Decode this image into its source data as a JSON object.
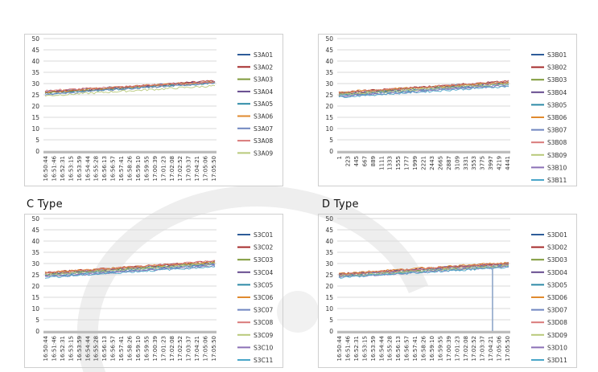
{
  "colors": {
    "palette": [
      "#2e5c99",
      "#a52a2a",
      "#7f9a3a",
      "#654a8e",
      "#2d8aa6",
      "#e08a2e",
      "#6f86c0",
      "#d97a7a",
      "#b8c97a",
      "#8b70b6",
      "#4aa6c9"
    ],
    "grid": "#d9d9d9",
    "axis": "#9e9e9e",
    "panel_border": "#cfcfcf"
  },
  "chart_data": [
    {
      "id": "a",
      "type": "line",
      "title": "",
      "xlabel": "",
      "ylabel": "",
      "ylim": [
        0,
        50
      ],
      "yticks": [
        "50",
        "45",
        "40",
        "35",
        "30",
        "25",
        "20",
        "15",
        "10",
        "5",
        "0"
      ],
      "x_tick_labels": [
        "16:50:44",
        "16:51:46",
        "16:52:31",
        "16:53:15",
        "16:53:59",
        "16:54:44",
        "16:55:28",
        "16:56:13",
        "16:56:57",
        "16:57:41",
        "16:58:26",
        "16:59:10",
        "16:59:55",
        "17:00:39",
        "17:01:23",
        "17:02:08",
        "17:02:52",
        "17:03:37",
        "17:04:21",
        "17:05:06",
        "17:05:50"
      ],
      "grid": true,
      "legend_position": "right",
      "series": [
        {
          "name": "S3A01",
          "start": 26.2,
          "end": 30.8
        },
        {
          "name": "S3A02",
          "start": 26.0,
          "end": 31.2
        },
        {
          "name": "S3A03",
          "start": 25.8,
          "end": 30.5
        },
        {
          "name": "S3A04",
          "start": 26.5,
          "end": 30.9
        },
        {
          "name": "S3A05",
          "start": 25.5,
          "end": 30.2
        },
        {
          "name": "S3A06",
          "start": 26.3,
          "end": 31.0
        },
        {
          "name": "S3A07",
          "start": 25.2,
          "end": 30.4
        },
        {
          "name": "S3A08",
          "start": 26.8,
          "end": 30.7
        },
        {
          "name": "S3A09",
          "start": 24.6,
          "end": 29.0
        }
      ]
    },
    {
      "id": "b",
      "type": "line",
      "title": "",
      "xlabel": "",
      "ylabel": "",
      "ylim": [
        0,
        50
      ],
      "yticks": [
        "50",
        "45",
        "40",
        "35",
        "30",
        "25",
        "20",
        "15",
        "10",
        "5",
        "0"
      ],
      "x_tick_labels": [
        "1",
        "223",
        "445",
        "667",
        "889",
        "1111",
        "1333",
        "1555",
        "1777",
        "1999",
        "2221",
        "2443",
        "2665",
        "2887",
        "3109",
        "3331",
        "3553",
        "3775",
        "3997",
        "4219",
        "4441"
      ],
      "grid": true,
      "legend_position": "right",
      "series": [
        {
          "name": "S3B01",
          "start": 25.8,
          "end": 30.8
        },
        {
          "name": "S3B02",
          "start": 26.0,
          "end": 31.0
        },
        {
          "name": "S3B03",
          "start": 25.5,
          "end": 30.5
        },
        {
          "name": "S3B04",
          "start": 25.2,
          "end": 30.2
        },
        {
          "name": "S3B05",
          "start": 24.8,
          "end": 29.8
        },
        {
          "name": "S3B06",
          "start": 26.2,
          "end": 30.6
        },
        {
          "name": "S3B07",
          "start": 24.5,
          "end": 29.5
        },
        {
          "name": "S3B08",
          "start": 25.9,
          "end": 30.9
        },
        {
          "name": "S3B09",
          "start": 25.0,
          "end": 30.0
        },
        {
          "name": "S3B10",
          "start": 24.2,
          "end": 29.2
        },
        {
          "name": "S3B11",
          "start": 24.0,
          "end": 28.8
        }
      ]
    },
    {
      "id": "c",
      "type": "line",
      "title": "C Type",
      "xlabel": "",
      "ylabel": "",
      "ylim": [
        0,
        50
      ],
      "yticks": [
        "50",
        "45",
        "40",
        "35",
        "30",
        "25",
        "20",
        "15",
        "10",
        "5",
        "0"
      ],
      "x_tick_labels": [
        "16:50:44",
        "16:51:46",
        "16:52:31",
        "16:53:15",
        "16:53:59",
        "16:54:44",
        "16:55:28",
        "16:56:13",
        "16:56:57",
        "16:57:41",
        "16:58:26",
        "16:59:10",
        "16:59:55",
        "17:00:39",
        "17:01:23",
        "17:02:08",
        "17:02:52",
        "17:03:37",
        "17:04:21",
        "17:05:06",
        "17:05:50"
      ],
      "grid": true,
      "legend_position": "right",
      "series": [
        {
          "name": "S3C01",
          "start": 25.6,
          "end": 30.6
        },
        {
          "name": "S3C02",
          "start": 25.9,
          "end": 31.0
        },
        {
          "name": "S3C03",
          "start": 25.3,
          "end": 30.4
        },
        {
          "name": "S3C04",
          "start": 25.0,
          "end": 30.0
        },
        {
          "name": "S3C05",
          "start": 24.6,
          "end": 29.6
        },
        {
          "name": "S3C06",
          "start": 26.0,
          "end": 30.8
        },
        {
          "name": "S3C07",
          "start": 24.3,
          "end": 29.4
        },
        {
          "name": "S3C08",
          "start": 25.7,
          "end": 31.2
        },
        {
          "name": "S3C09",
          "start": 24.9,
          "end": 29.9
        },
        {
          "name": "S3C10",
          "start": 24.0,
          "end": 29.0
        },
        {
          "name": "S3C11",
          "start": 23.8,
          "end": 28.7
        }
      ]
    },
    {
      "id": "d",
      "type": "line",
      "title": "D Type",
      "xlabel": "",
      "ylabel": "",
      "ylim": [
        0,
        50
      ],
      "yticks": [
        "50",
        "45",
        "40",
        "35",
        "30",
        "25",
        "20",
        "15",
        "10",
        "5",
        "0"
      ],
      "x_tick_labels": [
        "16:50:44",
        "16:51:46",
        "16:52:31",
        "16:53:15",
        "16:53:59",
        "16:54:44",
        "16:55:28",
        "16:56:13",
        "16:56:57",
        "16:57:41",
        "16:58:26",
        "16:59:10",
        "16:59:55",
        "17:00:39",
        "17:01:23",
        "17:02:08",
        "17:02:52",
        "17:03:37",
        "17:04:21",
        "17:05:06",
        "17:05:50"
      ],
      "grid": true,
      "legend_position": "right",
      "series": [
        {
          "name": "S3D01",
          "start": 25.0,
          "end": 29.8
        },
        {
          "name": "S3D02",
          "start": 25.4,
          "end": 30.2
        },
        {
          "name": "S3D03",
          "start": 24.8,
          "end": 29.6
        },
        {
          "name": "S3D04",
          "start": 25.2,
          "end": 30.0
        },
        {
          "name": "S3D05",
          "start": 24.2,
          "end": 28.8
        },
        {
          "name": "S3D06",
          "start": 25.6,
          "end": 30.4
        },
        {
          "name": "S3D07",
          "start": 24.6,
          "end": 29.2
        },
        {
          "name": "S3D08",
          "start": 25.1,
          "end": 29.9
        },
        {
          "name": "S3D09",
          "start": 24.4,
          "end": 29.0
        },
        {
          "name": "S3D10",
          "start": 24.0,
          "end": 28.6
        },
        {
          "name": "S3D11",
          "start": 23.8,
          "end": 28.4
        }
      ],
      "annotation_drop": {
        "series": "S3D05",
        "at_fraction": 0.905,
        "to_value": 0
      }
    }
  ]
}
